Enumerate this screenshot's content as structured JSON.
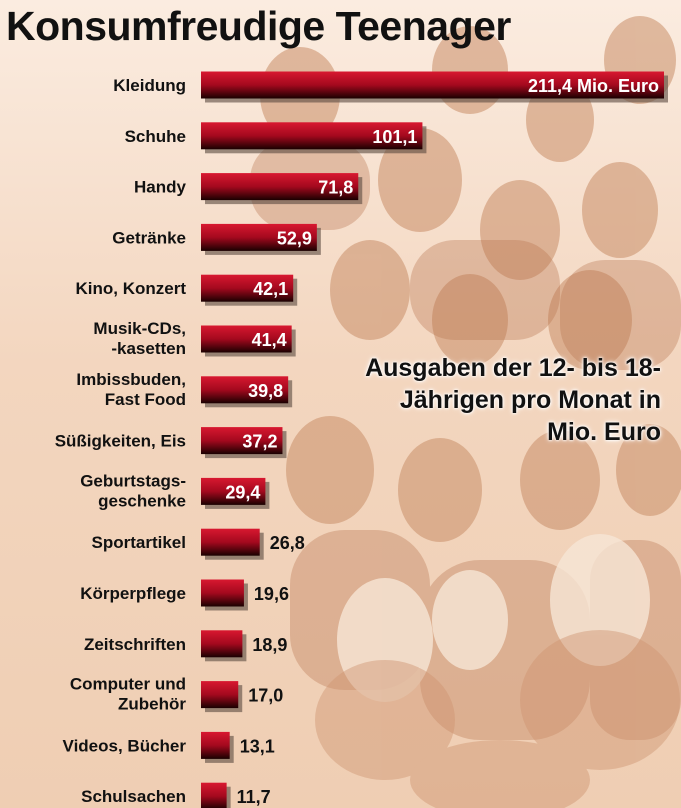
{
  "chart_data": {
    "type": "bar",
    "orientation": "horizontal",
    "title": "Konsumfreudige Teenager",
    "subtitle": "Ausgaben der 12- bis 18-Jährigen pro Monat in Mio. Euro",
    "unit": "Mio. Euro",
    "categories": [
      "Kleidung",
      "Schuhe",
      "Handy",
      "Getränke",
      "Kino, Konzert",
      "Musik-CDs,\n-kasetten",
      "Imbissbuden,\nFast Food",
      "Süßigkeiten, Eis",
      "Geburtstags-\ngeschenke",
      "Sportartikel",
      "Körperpflege",
      "Zeitschriften",
      "Computer und\nZubehör",
      "Videos, Bücher",
      "Schulsachen"
    ],
    "values": [
      211.4,
      101.1,
      71.8,
      52.9,
      42.1,
      41.4,
      39.8,
      37.2,
      29.4,
      26.8,
      19.6,
      18.9,
      17.0,
      13.1,
      11.7
    ],
    "value_labels": [
      "211,4  Mio. Euro",
      "101,1",
      "71,8",
      "52,9",
      "42,1",
      "41,4",
      "39,8",
      "37,2",
      "29,4",
      "26,8",
      "19,6",
      "18,9",
      "17,0",
      "13,1",
      "11,7"
    ],
    "label_inside": [
      true,
      true,
      true,
      true,
      true,
      true,
      true,
      true,
      true,
      false,
      false,
      false,
      false,
      false,
      false
    ],
    "xlabel": "",
    "ylabel": "",
    "xlim": [
      0,
      211.4
    ],
    "grid": false,
    "legend": false,
    "colors": {
      "bar_top": "#c8102e",
      "bar_bottom": "#1a0000",
      "bar_shadow": "#5a4a40"
    }
  }
}
